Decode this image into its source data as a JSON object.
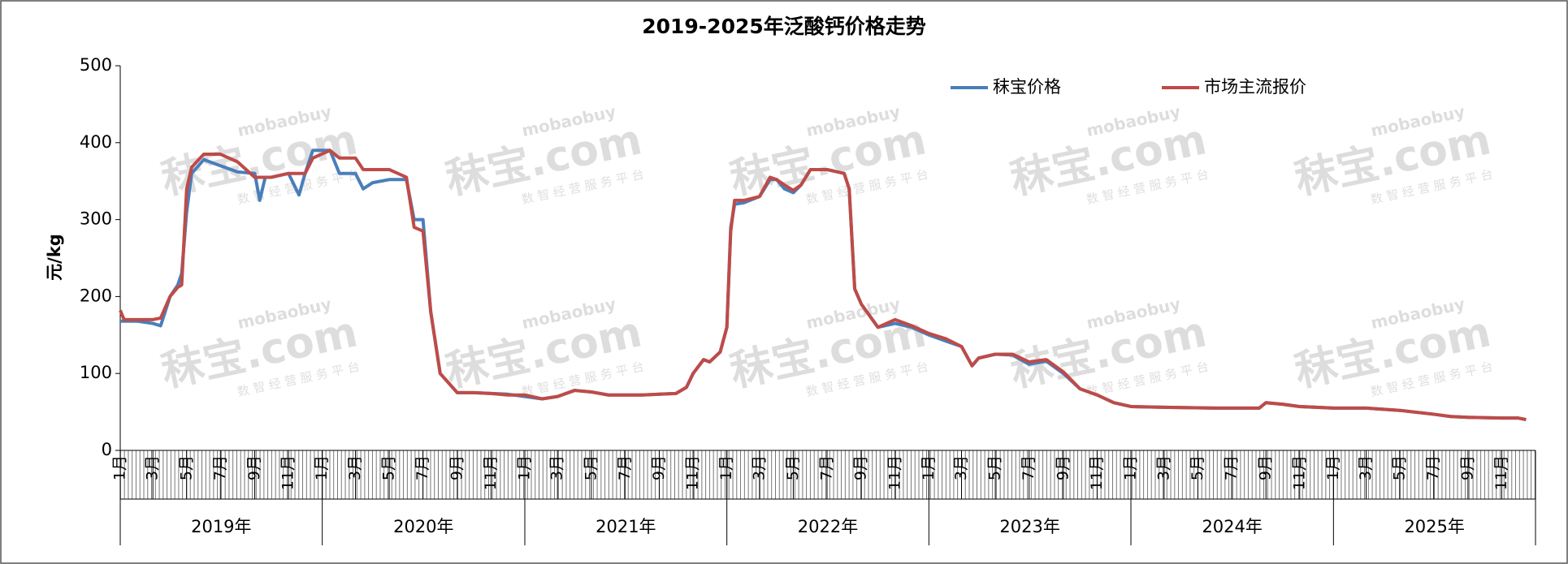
{
  "chart_data": {
    "type": "line",
    "title": "2019-2025年泛酸钙价格走势",
    "y_label": "元/kg",
    "ylim": [
      0,
      500
    ],
    "yticks": [
      0,
      100,
      200,
      300,
      400,
      500
    ],
    "xlim": [
      "2019-01-01",
      "2026-01-01"
    ],
    "xticks": [
      {
        "value": "2019-01-01",
        "label": "1月"
      },
      {
        "value": "2019-03-01",
        "label": "3月"
      },
      {
        "value": "2019-05-01",
        "label": "5月"
      },
      {
        "value": "2019-07-01",
        "label": "7月"
      },
      {
        "value": "2019-09-01",
        "label": "9月"
      },
      {
        "value": "2019-11-01",
        "label": "11月"
      },
      {
        "value": "2020-01-01",
        "label": "1月"
      },
      {
        "value": "2020-03-01",
        "label": "3月"
      },
      {
        "value": "2020-05-01",
        "label": "5月"
      },
      {
        "value": "2020-07-01",
        "label": "7月"
      },
      {
        "value": "2020-09-01",
        "label": "9月"
      },
      {
        "value": "2020-11-01",
        "label": "11月"
      },
      {
        "value": "2021-01-01",
        "label": "1月"
      },
      {
        "value": "2021-03-01",
        "label": "3月"
      },
      {
        "value": "2021-05-01",
        "label": "5月"
      },
      {
        "value": "2021-07-01",
        "label": "7月"
      },
      {
        "value": "2021-09-01",
        "label": "9月"
      },
      {
        "value": "2021-11-01",
        "label": "11月"
      },
      {
        "value": "2022-01-01",
        "label": "1月"
      },
      {
        "value": "2022-03-01",
        "label": "3月"
      },
      {
        "value": "2022-05-01",
        "label": "5月"
      },
      {
        "value": "2022-07-01",
        "label": "7月"
      },
      {
        "value": "2022-09-01",
        "label": "9月"
      },
      {
        "value": "2022-11-01",
        "label": "11月"
      },
      {
        "value": "2023-01-01",
        "label": "1月"
      },
      {
        "value": "2023-03-01",
        "label": "3月"
      },
      {
        "value": "2023-05-01",
        "label": "5月"
      },
      {
        "value": "2023-07-01",
        "label": "7月"
      },
      {
        "value": "2023-09-01",
        "label": "9月"
      },
      {
        "value": "2023-11-01",
        "label": "11月"
      },
      {
        "value": "2024-01-01",
        "label": "1月"
      },
      {
        "value": "2024-03-01",
        "label": "3月"
      },
      {
        "value": "2024-05-01",
        "label": "5月"
      },
      {
        "value": "2024-07-01",
        "label": "7月"
      },
      {
        "value": "2024-09-01",
        "label": "9月"
      },
      {
        "value": "2024-11-01",
        "label": "11月"
      },
      {
        "value": "2025-01-01",
        "label": "1月"
      },
      {
        "value": "2025-03-01",
        "label": "3月"
      },
      {
        "value": "2025-05-01",
        "label": "5月"
      },
      {
        "value": "2025-07-01",
        "label": "7月"
      },
      {
        "value": "2025-09-01",
        "label": "9月"
      },
      {
        "value": "2025-11-01",
        "label": "11月"
      }
    ],
    "year_groups": [
      {
        "value": "2019-01-01",
        "label": "2019年"
      },
      {
        "value": "2020-01-01",
        "label": "2020年"
      },
      {
        "value": "2021-01-01",
        "label": "2021年"
      },
      {
        "value": "2022-01-01",
        "label": "2022年"
      },
      {
        "value": "2023-01-01",
        "label": "2023年"
      },
      {
        "value": "2024-01-01",
        "label": "2024年"
      },
      {
        "value": "2025-01-01",
        "label": "2025年"
      }
    ],
    "watermark": {
      "brand": "秣宝.com",
      "domain": "mobaobuy",
      "slogan": "数 智 经 营 服 务 平 台"
    },
    "x": [
      "2019-01-01",
      "2019-01-08",
      "2019-02-01",
      "2019-03-01",
      "2019-03-15",
      "2019-04-01",
      "2019-04-15",
      "2019-04-22",
      "2019-05-01",
      "2019-05-10",
      "2019-06-01",
      "2019-07-01",
      "2019-08-01",
      "2019-09-01",
      "2019-09-10",
      "2019-09-20",
      "2019-10-01",
      "2019-11-01",
      "2019-11-20",
      "2019-12-01",
      "2019-12-15",
      "2020-01-15",
      "2020-02-01",
      "2020-03-01",
      "2020-03-15",
      "2020-04-01",
      "2020-05-01",
      "2020-06-01",
      "2020-06-15",
      "2020-07-01",
      "2020-07-15",
      "2020-08-01",
      "2020-09-01",
      "2020-10-01",
      "2020-11-01",
      "2020-12-01",
      "2021-01-01",
      "2021-02-01",
      "2021-03-01",
      "2021-04-01",
      "2021-05-01",
      "2021-06-01",
      "2021-07-01",
      "2021-08-01",
      "2021-09-01",
      "2021-10-01",
      "2021-10-20",
      "2021-11-01",
      "2021-11-20",
      "2021-12-01",
      "2021-12-20",
      "2022-01-01",
      "2022-01-08",
      "2022-01-15",
      "2022-02-01",
      "2022-03-01",
      "2022-03-20",
      "2022-04-01",
      "2022-04-15",
      "2022-05-01",
      "2022-05-15",
      "2022-06-01",
      "2022-07-01",
      "2022-08-01",
      "2022-08-10",
      "2022-08-20",
      "2022-09-01",
      "2022-10-01",
      "2022-11-01",
      "2022-12-01",
      "2023-01-01",
      "2023-02-01",
      "2023-03-01",
      "2023-03-20",
      "2023-04-01",
      "2023-05-01",
      "2023-06-01",
      "2023-07-01",
      "2023-08-01",
      "2023-09-01",
      "2023-10-01",
      "2023-11-01",
      "2023-12-01",
      "2024-01-01",
      "2024-03-01",
      "2024-06-01",
      "2024-08-20",
      "2024-09-01",
      "2024-10-01",
      "2024-11-01",
      "2024-12-01",
      "2025-01-01",
      "2025-03-01",
      "2025-05-01",
      "2025-07-01",
      "2025-08-01",
      "2025-09-01",
      "2025-11-01",
      "2025-12-01",
      "2025-12-15"
    ],
    "series": [
      {
        "name": "秣宝价格",
        "color": "#4a7ebb",
        "values": [
          168,
          168,
          168,
          165,
          162,
          200,
          215,
          230,
          310,
          360,
          378,
          370,
          362,
          360,
          325,
          355,
          355,
          360,
          332,
          360,
          390,
          390,
          360,
          360,
          340,
          348,
          352,
          352,
          300,
          300,
          180,
          100,
          75,
          75,
          74,
          73,
          70,
          67,
          70,
          78,
          76,
          72,
          72,
          72,
          73,
          74,
          82,
          100,
          118,
          115,
          128,
          160,
          290,
          320,
          322,
          330,
          352,
          352,
          340,
          335,
          345,
          365,
          365,
          360,
          340,
          210,
          190,
          160,
          165,
          160,
          150,
          142,
          135,
          110,
          120,
          125,
          124,
          112,
          116,
          100,
          80,
          72,
          62,
          57,
          56,
          55,
          55,
          62,
          60,
          57,
          56,
          55,
          55,
          52,
          47,
          44,
          43,
          42,
          42,
          40
        ]
      },
      {
        "name": "市场主流报价",
        "color": "#be4b48",
        "values": [
          182,
          170,
          170,
          170,
          172,
          200,
          212,
          215,
          340,
          368,
          385,
          385,
          375,
          355,
          355,
          355,
          355,
          360,
          360,
          360,
          380,
          390,
          380,
          380,
          365,
          365,
          365,
          355,
          290,
          285,
          180,
          100,
          75,
          75,
          74,
          72,
          72,
          67,
          70,
          78,
          76,
          72,
          72,
          72,
          73,
          74,
          82,
          100,
          118,
          115,
          128,
          160,
          285,
          325,
          325,
          330,
          355,
          352,
          345,
          338,
          345,
          365,
          365,
          360,
          340,
          210,
          190,
          160,
          170,
          162,
          152,
          145,
          135,
          110,
          120,
          125,
          125,
          115,
          118,
          102,
          80,
          72,
          62,
          57,
          56,
          55,
          55,
          62,
          60,
          57,
          56,
          55,
          55,
          52,
          47,
          44,
          43,
          42,
          42,
          40
        ]
      }
    ]
  }
}
